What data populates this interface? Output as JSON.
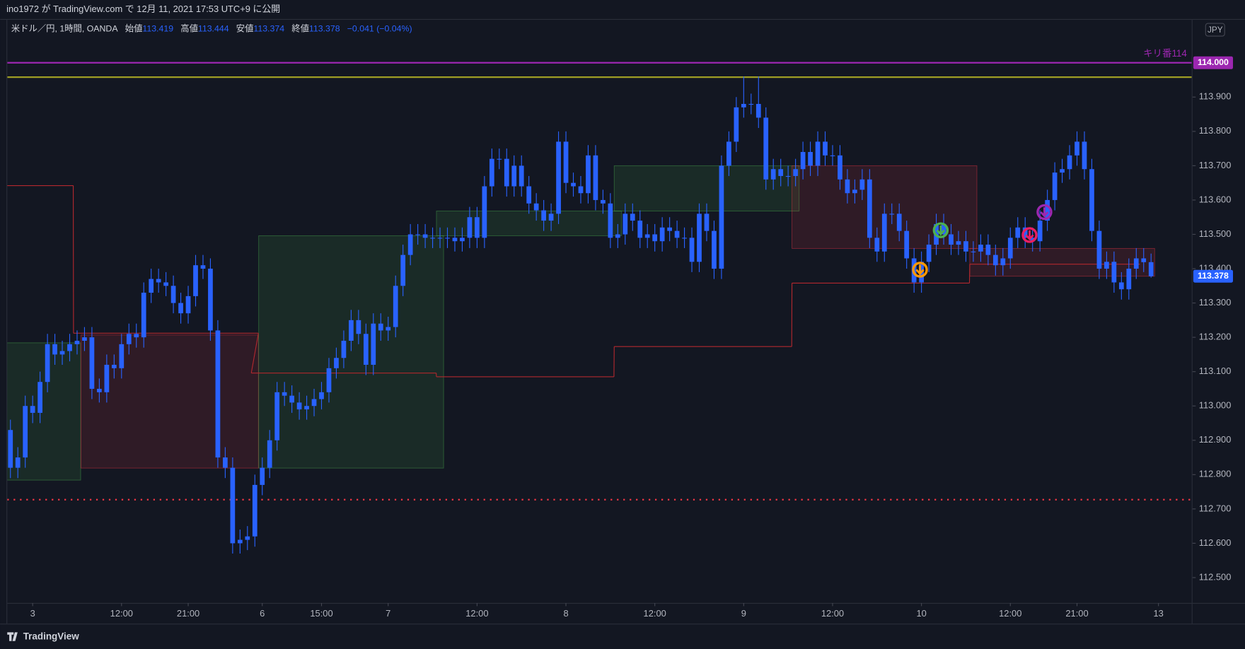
{
  "header": {
    "text": "ino1972 が TradingView.com で 12月 11, 2021 17:53 UTC+9 に公開"
  },
  "footer": {
    "brand": "TradingView"
  },
  "chart_data": {
    "type": "candlestick",
    "title": "米ドル／円, 1時間, OANDA",
    "legend_labels": {
      "open": "始値",
      "high": "高値",
      "low": "安値",
      "close": "終値"
    },
    "change": "−0.041 (−0.04%)",
    "currency": "JPY",
    "color": "#2962ff",
    "categories": [
      null,
      null,
      null,
      "3",
      null,
      null,
      null,
      null,
      null,
      null,
      null,
      null,
      null,
      null,
      null,
      "12:00",
      null,
      null,
      null,
      null,
      null,
      null,
      null,
      null,
      "21:00",
      null,
      null,
      null,
      null,
      null,
      null,
      null,
      null,
      null,
      "6",
      null,
      null,
      null,
      null,
      null,
      null,
      null,
      "15:00",
      null,
      null,
      null,
      null,
      null,
      null,
      null,
      null,
      "7",
      null,
      null,
      null,
      null,
      null,
      null,
      null,
      null,
      null,
      null,
      null,
      "12:00",
      null,
      null,
      null,
      null,
      null,
      null,
      null,
      null,
      null,
      null,
      null,
      "8",
      null,
      null,
      null,
      null,
      null,
      null,
      null,
      null,
      null,
      null,
      null,
      "12:00",
      null,
      null,
      null,
      null,
      null,
      null,
      null,
      null,
      null,
      null,
      null,
      "9",
      null,
      null,
      null,
      null,
      null,
      null,
      null,
      null,
      null,
      null,
      null,
      "12:00",
      null,
      null,
      null,
      null,
      null,
      null,
      null,
      null,
      null,
      null,
      null,
      "10",
      null,
      null,
      null,
      null,
      null,
      null,
      null,
      null,
      null,
      null,
      null,
      "12:00",
      null,
      null,
      null,
      null,
      null,
      null,
      null,
      null,
      "21:00",
      null,
      null,
      null,
      null,
      null,
      null,
      null,
      null,
      null,
      null,
      "13"
    ],
    "open": [
      112.93,
      112.82,
      112.85,
      113.0,
      112.98,
      113.07,
      113.18,
      113.15,
      113.16,
      113.18,
      113.19,
      113.2,
      113.05,
      113.04,
      113.12,
      113.11,
      113.18,
      113.21,
      113.2,
      113.33,
      113.37,
      113.36,
      113.35,
      113.3,
      113.27,
      113.32,
      113.41,
      113.4,
      113.22,
      112.85,
      112.82,
      112.6,
      112.61,
      112.62,
      112.77,
      112.82,
      112.9,
      113.04,
      113.03,
      113.01,
      112.99,
      113.0,
      113.02,
      113.04,
      113.11,
      113.14,
      113.19,
      113.25,
      113.21,
      113.12,
      113.24,
      113.22,
      113.23,
      113.35,
      113.44,
      113.5,
      113.5,
      113.49,
      113.49,
      113.49,
      113.49,
      113.48,
      113.49,
      113.55,
      113.49,
      113.64,
      113.72,
      113.72,
      113.64,
      113.7,
      113.64,
      113.59,
      113.57,
      113.54,
      113.56,
      113.77,
      113.65,
      113.64,
      113.62,
      113.73,
      113.6,
      113.59,
      113.49,
      113.5,
      113.56,
      113.54,
      113.49,
      113.5,
      113.48,
      113.52,
      113.51,
      113.49,
      113.49,
      113.42,
      113.56,
      113.51,
      113.4,
      113.7,
      113.77,
      113.87,
      113.88,
      113.88,
      113.84,
      113.66,
      113.69,
      113.67,
      113.67,
      113.69,
      113.74,
      113.7,
      113.77,
      113.73,
      113.73,
      113.66,
      113.62,
      113.63,
      113.66,
      113.49,
      113.45,
      113.56,
      113.56,
      113.51,
      113.43,
      113.36,
      113.42,
      113.47,
      113.53,
      113.5,
      113.47,
      113.48,
      113.45,
      113.45,
      113.47,
      113.44,
      113.41,
      113.43,
      113.49,
      113.52,
      113.49,
      113.48,
      113.54,
      113.6,
      113.68,
      113.69,
      113.73,
      113.77,
      113.69,
      113.51,
      113.4,
      113.42,
      113.36,
      113.34,
      113.4,
      113.43,
      113.419,
      null
    ],
    "high": [
      112.96,
      112.88,
      113.03,
      113.03,
      113.1,
      113.21,
      113.21,
      113.19,
      113.21,
      113.22,
      113.23,
      113.23,
      113.08,
      113.15,
      113.15,
      113.21,
      113.24,
      113.24,
      113.36,
      113.4,
      113.4,
      113.39,
      113.38,
      113.33,
      113.35,
      113.44,
      113.44,
      113.43,
      113.25,
      112.88,
      112.85,
      112.64,
      112.65,
      112.8,
      112.85,
      112.93,
      113.07,
      113.07,
      113.06,
      113.04,
      113.03,
      113.05,
      113.07,
      113.14,
      113.17,
      113.22,
      113.28,
      113.28,
      113.24,
      113.27,
      113.27,
      113.26,
      113.38,
      113.47,
      113.53,
      113.53,
      113.53,
      113.52,
      113.52,
      113.52,
      113.52,
      113.52,
      113.58,
      113.58,
      113.67,
      113.75,
      113.75,
      113.75,
      113.73,
      113.73,
      113.67,
      113.62,
      113.6,
      113.59,
      113.8,
      113.8,
      113.68,
      113.67,
      113.76,
      113.76,
      113.63,
      113.62,
      113.53,
      113.59,
      113.59,
      113.57,
      113.53,
      113.53,
      113.55,
      113.55,
      113.54,
      113.52,
      113.52,
      113.59,
      113.59,
      113.54,
      113.73,
      113.8,
      113.9,
      113.96,
      113.91,
      113.96,
      113.87,
      113.72,
      113.72,
      113.7,
      113.72,
      113.77,
      113.77,
      113.8,
      113.8,
      113.76,
      113.76,
      113.69,
      113.66,
      113.69,
      113.69,
      113.52,
      113.59,
      113.59,
      113.59,
      113.54,
      113.46,
      113.45,
      113.5,
      113.56,
      113.56,
      113.53,
      113.51,
      113.51,
      113.48,
      113.5,
      113.5,
      113.47,
      113.46,
      113.52,
      113.55,
      113.55,
      113.52,
      113.57,
      113.63,
      113.71,
      113.72,
      113.76,
      113.8,
      113.8,
      113.72,
      113.54,
      113.45,
      113.45,
      113.39,
      113.43,
      113.46,
      113.46,
      113.444,
      null
    ],
    "low": [
      112.79,
      112.79,
      112.82,
      112.95,
      112.95,
      113.04,
      113.12,
      113.12,
      113.13,
      113.15,
      113.16,
      113.02,
      113.01,
      113.01,
      113.08,
      113.08,
      113.15,
      113.17,
      113.17,
      113.3,
      113.33,
      113.32,
      113.27,
      113.24,
      113.24,
      113.29,
      113.37,
      113.19,
      112.82,
      112.79,
      112.57,
      112.57,
      112.58,
      112.59,
      112.74,
      112.79,
      112.87,
      113.0,
      112.98,
      112.96,
      112.96,
      112.97,
      112.99,
      113.01,
      113.08,
      113.11,
      113.16,
      113.18,
      113.09,
      113.09,
      113.19,
      113.19,
      113.2,
      113.32,
      113.41,
      113.47,
      113.46,
      113.46,
      113.46,
      113.46,
      113.45,
      113.45,
      113.46,
      113.46,
      113.46,
      113.61,
      113.69,
      113.61,
      113.61,
      113.61,
      113.56,
      113.54,
      113.51,
      113.51,
      113.53,
      113.62,
      113.61,
      113.59,
      113.59,
      113.57,
      113.56,
      113.46,
      113.46,
      113.47,
      113.51,
      113.46,
      113.46,
      113.45,
      113.45,
      113.48,
      113.46,
      113.46,
      113.39,
      113.39,
      113.48,
      113.37,
      113.37,
      113.67,
      113.74,
      113.84,
      113.85,
      113.81,
      113.63,
      113.63,
      113.64,
      113.64,
      113.64,
      113.66,
      113.67,
      113.67,
      113.7,
      113.7,
      113.63,
      113.59,
      113.59,
      113.6,
      113.46,
      113.42,
      113.42,
      113.53,
      113.48,
      113.4,
      113.33,
      113.33,
      113.39,
      113.44,
      113.47,
      113.44,
      113.44,
      113.42,
      113.42,
      113.42,
      113.41,
      113.38,
      113.38,
      113.4,
      113.46,
      113.46,
      113.45,
      113.45,
      113.51,
      113.57,
      113.65,
      113.66,
      113.7,
      113.66,
      113.48,
      113.37,
      113.37,
      113.33,
      113.31,
      113.31,
      113.37,
      113.39,
      113.374,
      null
    ],
    "close": [
      112.82,
      112.85,
      113.0,
      112.98,
      113.07,
      113.18,
      113.15,
      113.16,
      113.18,
      113.19,
      113.2,
      113.05,
      113.04,
      113.12,
      113.11,
      113.18,
      113.21,
      113.2,
      113.33,
      113.37,
      113.36,
      113.35,
      113.3,
      113.27,
      113.32,
      113.41,
      113.4,
      113.22,
      112.85,
      112.82,
      112.6,
      112.61,
      112.62,
      112.77,
      112.82,
      112.9,
      113.04,
      113.03,
      113.01,
      112.99,
      113.0,
      113.02,
      113.04,
      113.11,
      113.14,
      113.19,
      113.25,
      113.21,
      113.12,
      113.24,
      113.22,
      113.23,
      113.35,
      113.44,
      113.5,
      113.5,
      113.49,
      113.49,
      113.49,
      113.49,
      113.48,
      113.49,
      113.55,
      113.49,
      113.64,
      113.72,
      113.72,
      113.64,
      113.7,
      113.64,
      113.59,
      113.57,
      113.54,
      113.56,
      113.77,
      113.65,
      113.64,
      113.62,
      113.73,
      113.6,
      113.59,
      113.49,
      113.5,
      113.56,
      113.54,
      113.49,
      113.5,
      113.48,
      113.52,
      113.51,
      113.49,
      113.49,
      113.42,
      113.56,
      113.51,
      113.4,
      113.7,
      113.77,
      113.87,
      113.88,
      113.88,
      113.84,
      113.66,
      113.69,
      113.67,
      113.67,
      113.69,
      113.74,
      113.7,
      113.77,
      113.73,
      113.73,
      113.66,
      113.62,
      113.63,
      113.66,
      113.49,
      113.45,
      113.56,
      113.56,
      113.51,
      113.43,
      113.36,
      113.42,
      113.47,
      113.53,
      113.5,
      113.47,
      113.48,
      113.45,
      113.45,
      113.47,
      113.44,
      113.41,
      113.43,
      113.49,
      113.52,
      113.49,
      113.48,
      113.54,
      113.6,
      113.68,
      113.69,
      113.73,
      113.77,
      113.69,
      113.51,
      113.4,
      113.42,
      113.36,
      113.34,
      113.4,
      113.43,
      113.419,
      113.378,
      null
    ],
    "ylim": [
      112.426,
      114.125
    ],
    "yticks": [
      {
        "value": 112.5,
        "label": "112.500"
      },
      {
        "value": 112.6,
        "label": "112.600"
      },
      {
        "value": 112.7,
        "label": "112.700"
      },
      {
        "value": 112.8,
        "label": "112.800"
      },
      {
        "value": 112.9,
        "label": "112.900"
      },
      {
        "value": 113.0,
        "label": "113.000"
      },
      {
        "value": 113.1,
        "label": "113.100"
      },
      {
        "value": 113.2,
        "label": "113.200"
      },
      {
        "value": 113.3,
        "label": "113.300"
      },
      {
        "value": 113.4,
        "label": "113.400"
      },
      {
        "value": 113.5,
        "label": "113.500"
      },
      {
        "value": 113.6,
        "label": "113.600"
      },
      {
        "value": 113.7,
        "label": "113.700"
      },
      {
        "value": 113.8,
        "label": "113.800"
      },
      {
        "value": 113.9,
        "label": "113.900"
      }
    ],
    "grid": false,
    "levels": [
      {
        "value": 114,
        "label": "114.000",
        "name": "キリ番114",
        "color": "#9c27b0"
      },
      {
        "value": 113.958,
        "color": "#9e9d24"
      },
      {
        "value": 112.727,
        "color": "#f23645",
        "style": "dotted"
      }
    ],
    "zones": [
      {
        "from": 0,
        "to": 9,
        "top": 113.184,
        "bottom": 112.784,
        "color": "#4caf50"
      },
      {
        "from": 10,
        "to": 33,
        "top": 113.207,
        "bottom": 112.819,
        "color": "#f23645"
      },
      {
        "from": 34,
        "to": 58,
        "top": 113.496,
        "bottom": 112.819,
        "color": "#4caf50"
      },
      {
        "from": 58,
        "to": 82,
        "top": 113.568,
        "bottom": 113.496,
        "color": "#4caf50"
      },
      {
        "from": 82,
        "to": 106,
        "top": 113.7,
        "bottom": 113.568,
        "color": "#4caf50"
      },
      {
        "from": 106,
        "to": 130,
        "top": 113.7,
        "bottom": 113.459,
        "color": "#f23645"
      },
      {
        "from": 130,
        "to": 154,
        "top": 113.459,
        "bottom": 113.378,
        "color": "#f23645"
      }
    ],
    "steps": [
      {
        "from": 0,
        "to": 8,
        "value": 113.642
      },
      {
        "from": 9,
        "to": 33,
        "value": 113.212
      },
      {
        "from": 33,
        "to": 57,
        "value": 113.096
      },
      {
        "from": 58,
        "to": 81,
        "value": 113.085
      },
      {
        "from": 82,
        "to": 105,
        "value": 113.173
      },
      {
        "from": 106,
        "to": 129,
        "value": 113.358
      },
      {
        "from": 130,
        "to": 152,
        "value": 113.413
      }
    ],
    "step_color": "#b2282e",
    "signals": [
      {
        "index": 122.8,
        "value": 113.397,
        "color": "#ff9800"
      },
      {
        "index": 125.6,
        "value": 113.512,
        "color": "#4caf50"
      },
      {
        "index": 137.6,
        "value": 113.498,
        "color": "#e91e63"
      },
      {
        "index": 139.6,
        "value": 113.565,
        "color": "#9c27b0"
      }
    ]
  }
}
